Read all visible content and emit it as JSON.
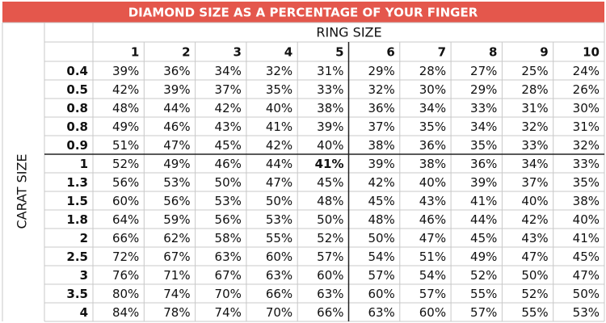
{
  "title": "DIAMOND SIZE AS A PERCENTAGE OF YOUR FINGER",
  "table": {
    "column_group": "RING SIZE",
    "row_group": "CARAT SIZE",
    "ring_sizes": [
      "1",
      "2",
      "3",
      "4",
      "5",
      "6",
      "7",
      "8",
      "9",
      "10"
    ],
    "highlight": {
      "row": 5,
      "col": 4
    },
    "rows": [
      {
        "carat": "0.4",
        "cells": [
          "39%",
          "36%",
          "34%",
          "32%",
          "31%",
          "29%",
          "28%",
          "27%",
          "25%",
          "24%"
        ]
      },
      {
        "carat": "0.5",
        "cells": [
          "42%",
          "39%",
          "37%",
          "35%",
          "33%",
          "32%",
          "30%",
          "29%",
          "28%",
          "26%"
        ]
      },
      {
        "carat": "0.8",
        "cells": [
          "48%",
          "44%",
          "42%",
          "40%",
          "38%",
          "36%",
          "34%",
          "33%",
          "31%",
          "30%"
        ]
      },
      {
        "carat": "0.8",
        "cells": [
          "49%",
          "46%",
          "43%",
          "41%",
          "39%",
          "37%",
          "35%",
          "34%",
          "32%",
          "31%"
        ]
      },
      {
        "carat": "0.9",
        "cells": [
          "51%",
          "47%",
          "45%",
          "42%",
          "40%",
          "38%",
          "36%",
          "35%",
          "33%",
          "32%"
        ]
      },
      {
        "carat": "1",
        "cells": [
          "52%",
          "49%",
          "46%",
          "44%",
          "41%",
          "39%",
          "38%",
          "36%",
          "34%",
          "33%"
        ]
      },
      {
        "carat": "1.3",
        "cells": [
          "56%",
          "53%",
          "50%",
          "47%",
          "45%",
          "42%",
          "40%",
          "39%",
          "37%",
          "35%"
        ]
      },
      {
        "carat": "1.5",
        "cells": [
          "60%",
          "56%",
          "53%",
          "50%",
          "48%",
          "45%",
          "43%",
          "41%",
          "40%",
          "38%"
        ]
      },
      {
        "carat": "1.8",
        "cells": [
          "64%",
          "59%",
          "56%",
          "53%",
          "50%",
          "48%",
          "46%",
          "44%",
          "42%",
          "40%"
        ]
      },
      {
        "carat": "2",
        "cells": [
          "66%",
          "62%",
          "58%",
          "55%",
          "52%",
          "50%",
          "47%",
          "45%",
          "43%",
          "41%"
        ]
      },
      {
        "carat": "2.5",
        "cells": [
          "72%",
          "67%",
          "63%",
          "60%",
          "57%",
          "54%",
          "51%",
          "49%",
          "47%",
          "45%"
        ]
      },
      {
        "carat": "3",
        "cells": [
          "76%",
          "71%",
          "67%",
          "63%",
          "60%",
          "57%",
          "54%",
          "52%",
          "50%",
          "47%"
        ]
      },
      {
        "carat": "3.5",
        "cells": [
          "80%",
          "74%",
          "70%",
          "66%",
          "63%",
          "60%",
          "57%",
          "55%",
          "52%",
          "50%"
        ]
      },
      {
        "carat": "4",
        "cells": [
          "84%",
          "78%",
          "74%",
          "70%",
          "66%",
          "63%",
          "60%",
          "57%",
          "55%",
          "53%"
        ]
      }
    ]
  }
}
